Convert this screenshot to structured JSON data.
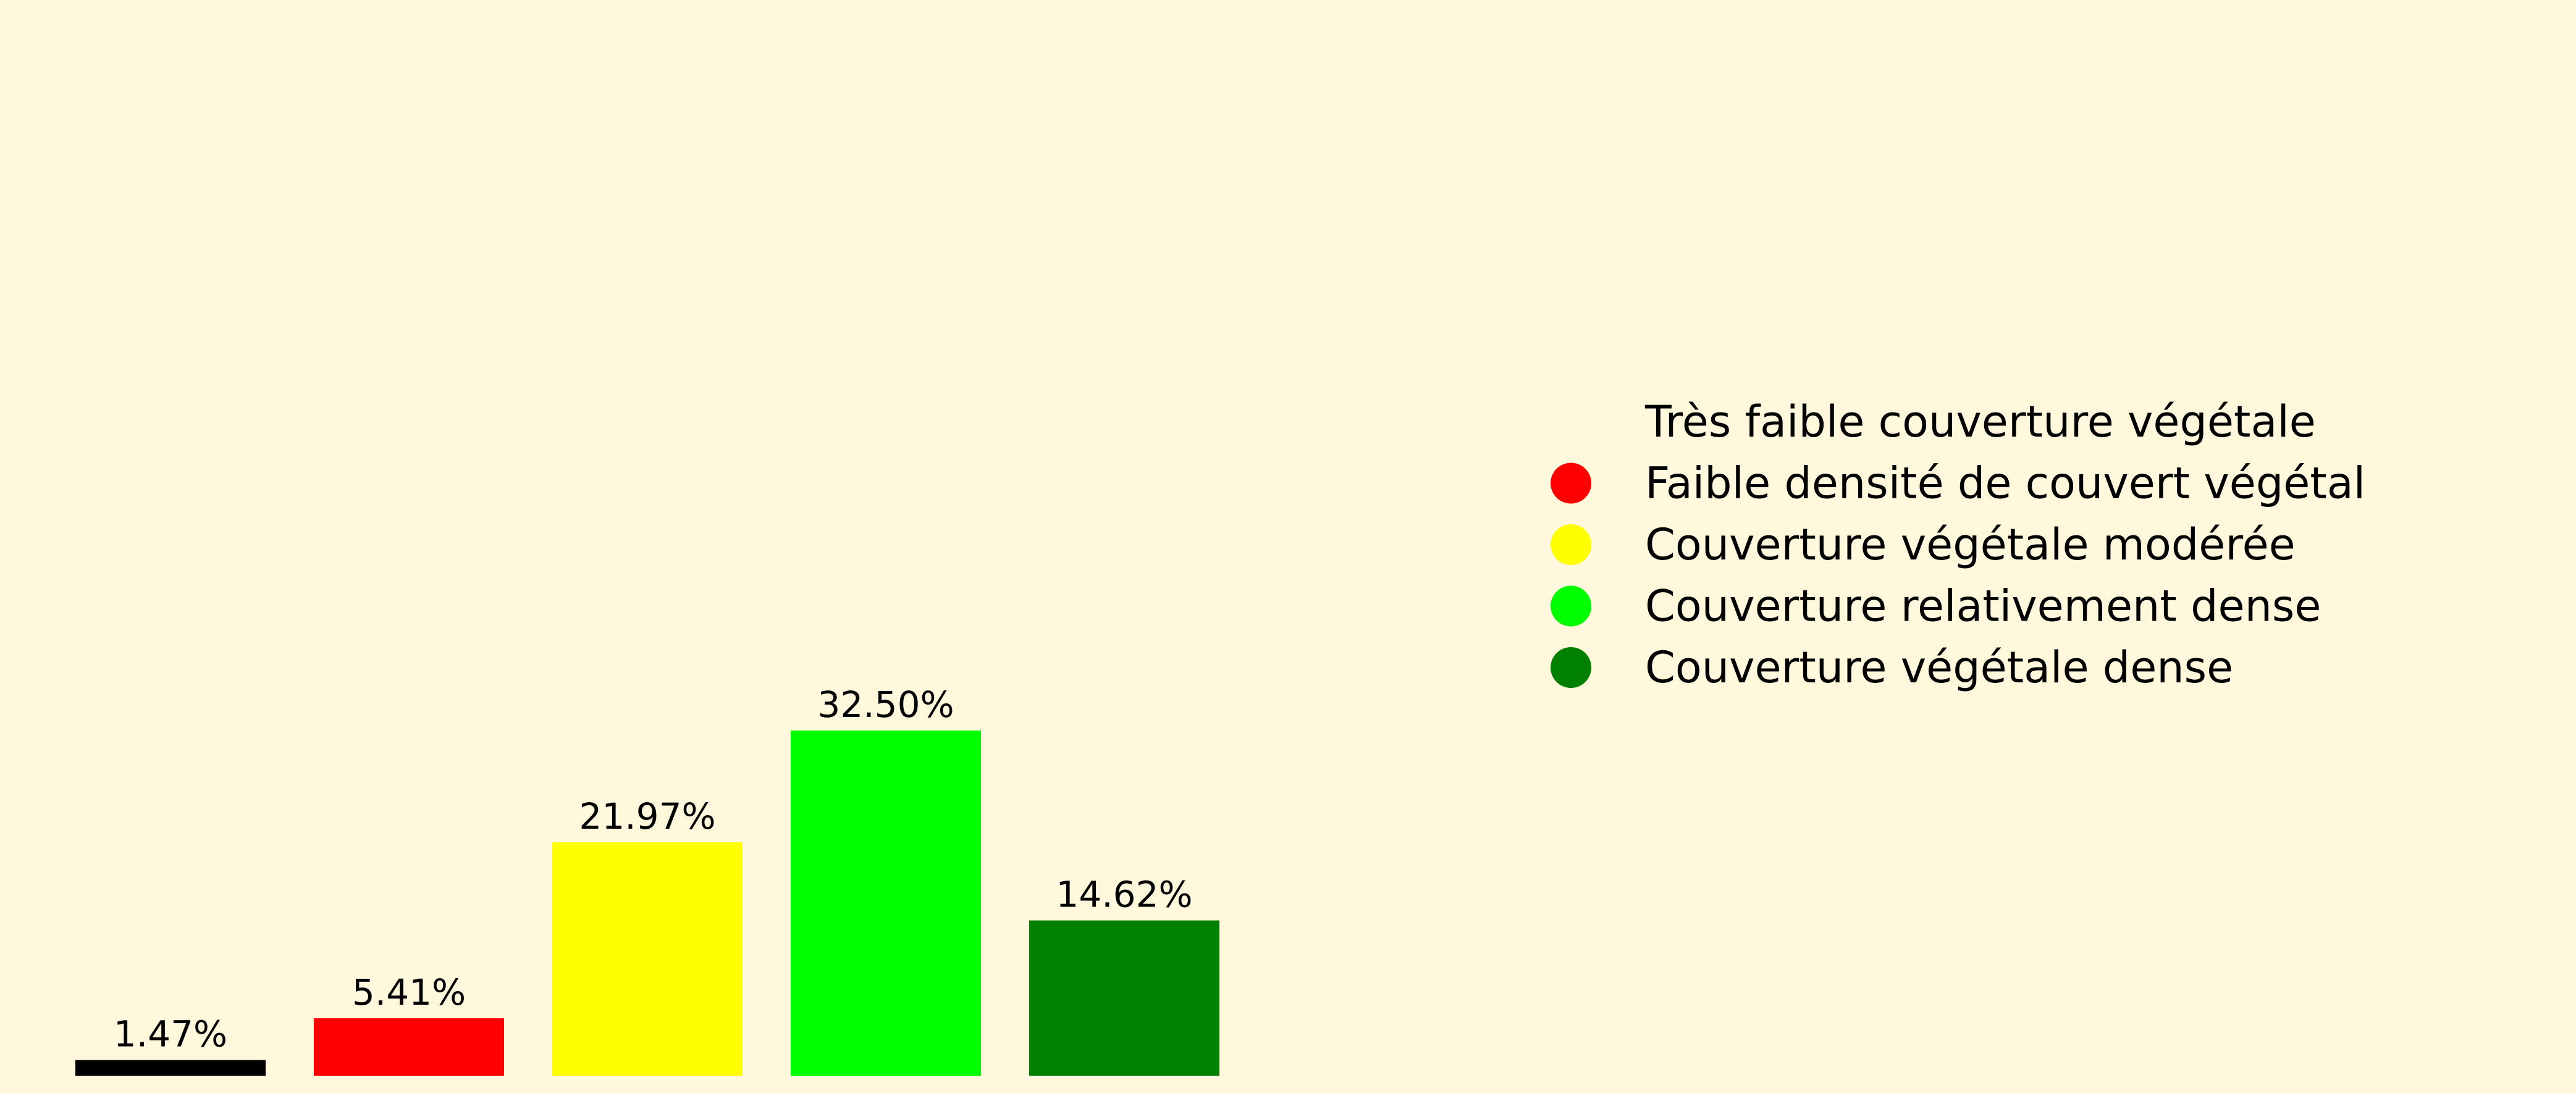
{
  "chart_data": {
    "type": "bar",
    "categories": [
      "Très faible couverture végétale",
      "Faible densité de couvert végétal",
      "Couverture végétale modérée",
      "Couverture relativement dense",
      "Couverture végétale dense"
    ],
    "values": [
      1.47,
      5.41,
      21.97,
      32.5,
      14.62
    ],
    "value_labels": [
      "1.47%",
      "5.41%",
      "21.97%",
      "32.50%",
      "14.62%"
    ],
    "colors": [
      "#000000",
      "#FF0000",
      "#FFFF00",
      "#00FF00",
      "#008000"
    ],
    "legend": {
      "placement": "right",
      "entries": [
        {
          "label": "Très faible couverture végétale",
          "color": "#000000"
        },
        {
          "label": "Faible densité de couvert végétal",
          "color": "#FF0000"
        },
        {
          "label": "Couverture végétale modérée",
          "color": "#FFFF00"
        },
        {
          "label": "Couverture relativement dense",
          "color": "#00FF00"
        },
        {
          "label": "Couverture végétale dense",
          "color": "#008000"
        }
      ]
    },
    "ylim": [
      0,
      100
    ],
    "grid": false,
    "axes_visible": false,
    "background": "#FFF8DC"
  }
}
